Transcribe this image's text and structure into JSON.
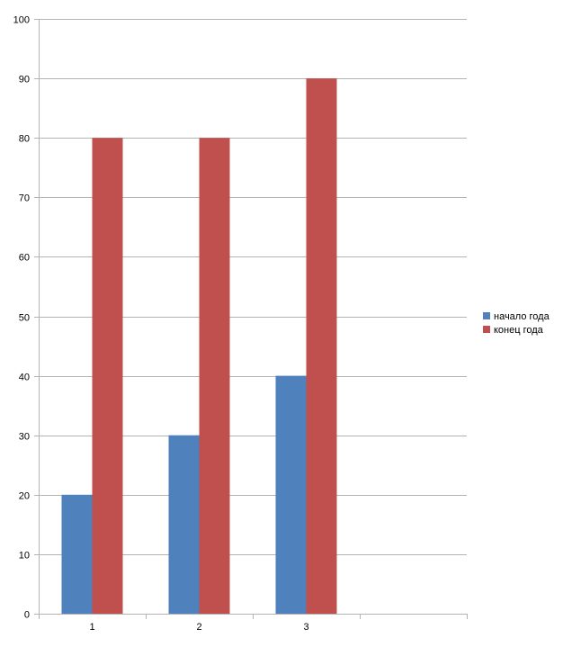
{
  "chart_data": {
    "type": "bar",
    "title": "",
    "xlabel": "",
    "ylabel": "",
    "categories": [
      "1",
      "2",
      "3",
      ""
    ],
    "series": [
      {
        "name": "начало года",
        "values": [
          20,
          30,
          40,
          null
        ],
        "color": "#4F81BD"
      },
      {
        "name": "конец года",
        "values": [
          80,
          80,
          90,
          null
        ],
        "color": "#C0504D"
      }
    ],
    "ylim": [
      0,
      100
    ],
    "yticks": [
      0,
      10,
      20,
      30,
      40,
      50,
      60,
      70,
      80,
      90,
      100
    ],
    "grid": true,
    "legend_position": "right",
    "colors": {
      "gridline": "#B3B3B3",
      "axis": "#B3B3B3"
    }
  }
}
